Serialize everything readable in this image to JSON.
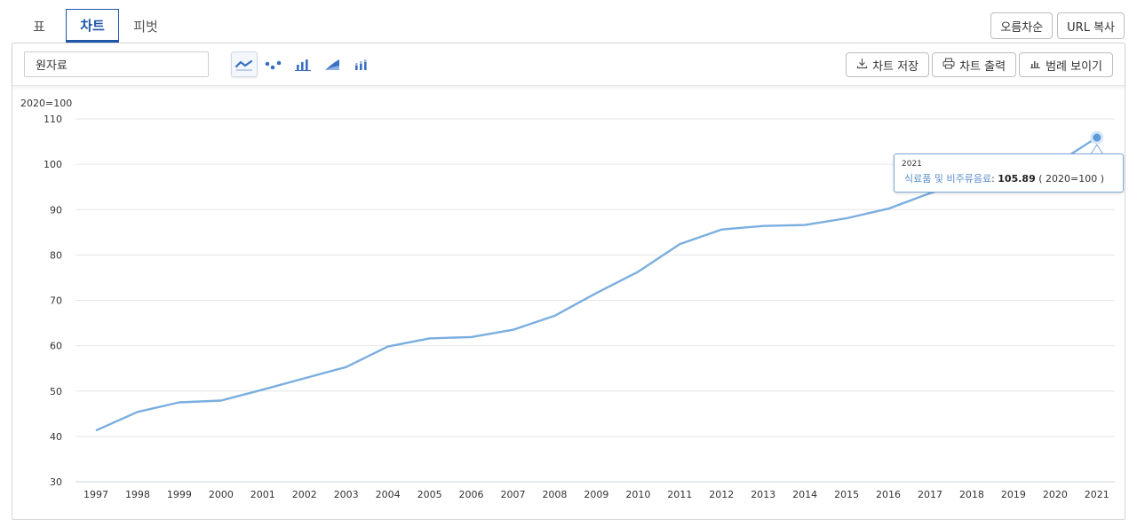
{
  "tabs": [
    {
      "label": "표"
    },
    {
      "label": "차트"
    },
    {
      "label": "피벗"
    }
  ],
  "top_actions": {
    "sort_label": "오름차순",
    "url_copy_label": "URL 복사"
  },
  "toolbar": {
    "selected_item": "원자료",
    "chart_type_icons": [
      "line-chart-icon",
      "scatter-chart-icon",
      "bar-chart-icon",
      "area-chart-icon",
      "stacked-bar-chart-icon"
    ],
    "save_label": "차트 저장",
    "print_label": "차트 출력",
    "legend_label": "범례 보이기"
  },
  "chart": {
    "unit_label": "2020=100",
    "line_color": "#7aaedf",
    "point_color": "#5b9bdc"
  },
  "tooltip": {
    "year": "2021",
    "series": "식료품 및 비주류음료",
    "value": "105.89",
    "unit": "( 2020=100 )"
  },
  "chart_data": {
    "type": "line",
    "x": [
      "1997",
      "1998",
      "1999",
      "2000",
      "2001",
      "2002",
      "2003",
      "2004",
      "2005",
      "2006",
      "2007",
      "2008",
      "2009",
      "2010",
      "2011",
      "2012",
      "2013",
      "2014",
      "2015",
      "2016",
      "2017",
      "2018",
      "2019",
      "2020",
      "2021"
    ],
    "series": [
      {
        "name": "식료품 및 비주류음료",
        "values": [
          41.3,
          45.4,
          47.5,
          47.9,
          50.3,
          52.8,
          55.3,
          59.8,
          61.6,
          61.9,
          63.5,
          66.6,
          71.6,
          76.3,
          82.4,
          85.6,
          86.4,
          86.6,
          88.1,
          90.2,
          93.6,
          96.6,
          98.2,
          100.0,
          105.89
        ]
      }
    ],
    "ylabel": "2020=100",
    "ylim": [
      30,
      110
    ],
    "yticks": [
      30,
      40,
      50,
      60,
      70,
      80,
      90,
      100,
      110
    ],
    "grid": true
  }
}
